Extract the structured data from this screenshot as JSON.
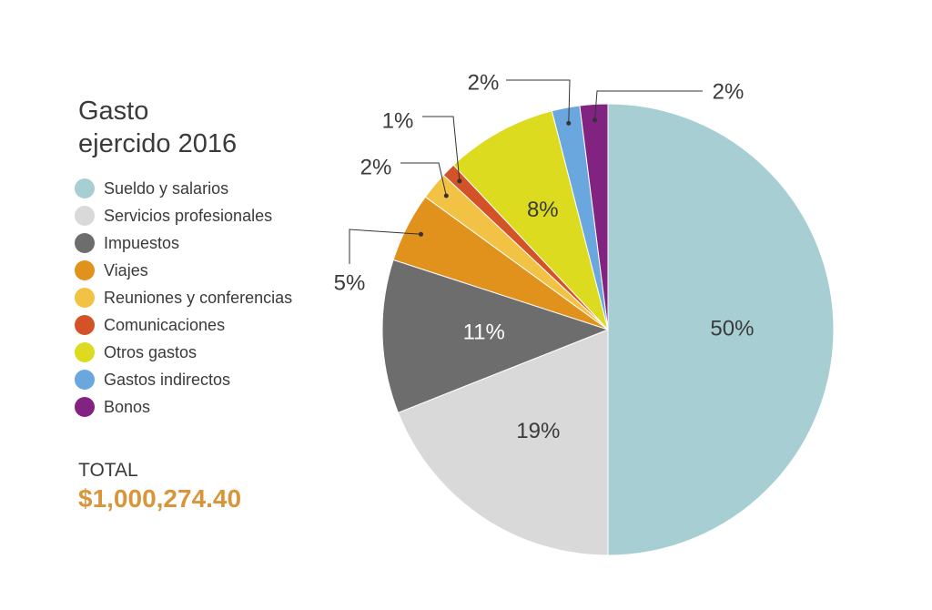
{
  "header": {
    "title_line1": "Gasto",
    "title_line2": "ejercido 2016"
  },
  "total": {
    "label": "TOTAL",
    "value": "$1,000,274.40"
  },
  "chart_data": {
    "type": "pie",
    "categories": [
      "Sueldo y salarios",
      "Servicios profesionales",
      "Impuestos",
      "Viajes",
      "Reuniones y conferencias",
      "Comunicaciones",
      "Otros gastos",
      "Gastos indirectos",
      "Bonos"
    ],
    "values": [
      50,
      19,
      11,
      5,
      2,
      1,
      8,
      2,
      2
    ],
    "labels": [
      "50%",
      "19%",
      "11%",
      "5%",
      "2%",
      "1%",
      "8%",
      "2%",
      "2%"
    ],
    "colors": [
      "#a7cfd3",
      "#d9d9d9",
      "#6d6d6d",
      "#e0921d",
      "#f2c244",
      "#d45227",
      "#dcdb20",
      "#6aa7de",
      "#832381"
    ],
    "legend_position": "left",
    "start": "top, counterclockwise from the right half"
  }
}
